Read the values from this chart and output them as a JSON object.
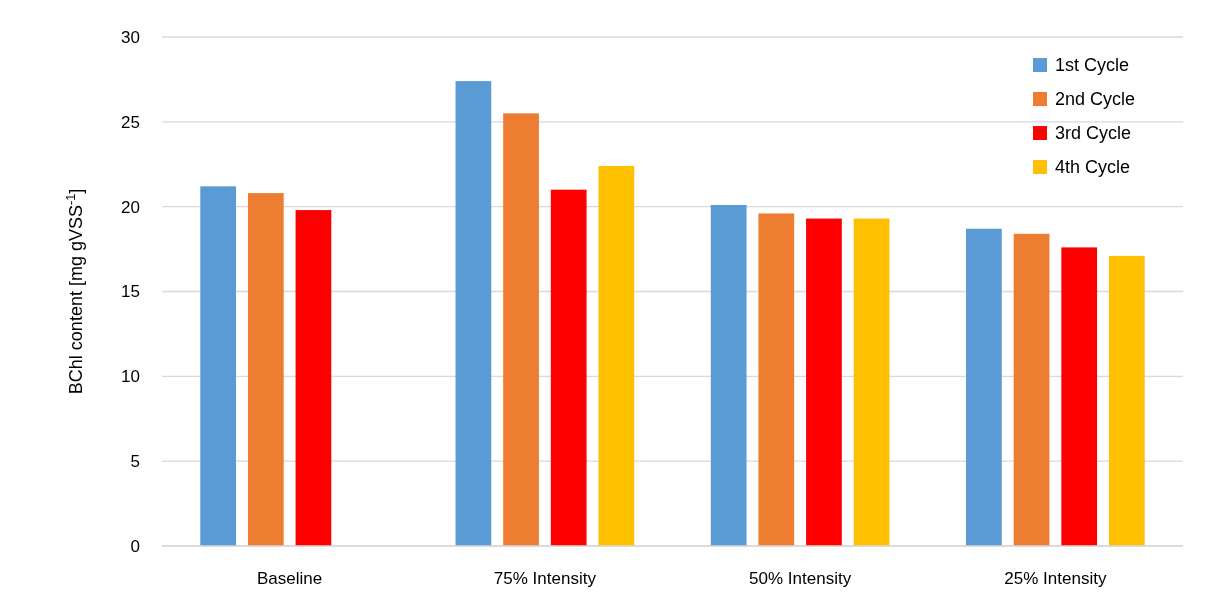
{
  "chart_data": {
    "type": "bar",
    "ylabel": "BChl content [mg gVSS$^{-1}$]",
    "categories": [
      "Baseline",
      "75% Intensity",
      "50% Intensity",
      "25% Intensity"
    ],
    "series": [
      {
        "name": "1st Cycle",
        "color": "#5b9bd5",
        "values": [
          21.2,
          27.4,
          20.1,
          18.7
        ]
      },
      {
        "name": "2nd Cycle",
        "color": "#ed7d31",
        "values": [
          20.8,
          25.5,
          19.6,
          18.4
        ]
      },
      {
        "name": "3rd Cycle",
        "color": "#ff0000",
        "values": [
          19.8,
          21.0,
          19.3,
          17.6
        ]
      },
      {
        "name": "4th Cycle",
        "color": "#ffc000",
        "values": [
          null,
          22.4,
          19.3,
          17.1
        ]
      }
    ],
    "ylim": [
      0,
      30
    ],
    "yticks": [
      0,
      5,
      10,
      15,
      20,
      25,
      30
    ],
    "grid": "y",
    "legend": "top right"
  }
}
